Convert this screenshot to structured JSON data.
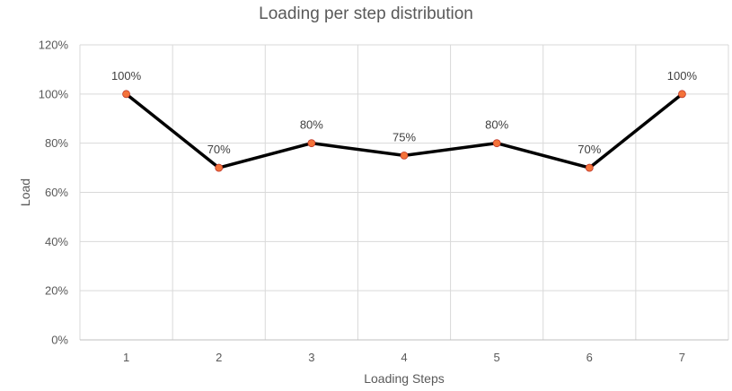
{
  "chart_data": {
    "type": "line",
    "title": "Loading per step distribution",
    "xlabel": "Loading Steps",
    "ylabel": "Load",
    "categories": [
      "1",
      "2",
      "3",
      "4",
      "5",
      "6",
      "7"
    ],
    "series": [
      {
        "values": [
          100,
          70,
          80,
          75,
          80,
          70,
          100
        ],
        "data_labels": [
          "100%",
          "70%",
          "80%",
          "75%",
          "80%",
          "70%",
          "100%"
        ],
        "line_color": "#000000",
        "marker_color": "#f4733a"
      }
    ],
    "ylim": [
      0,
      120
    ],
    "yticks": [
      0,
      20,
      40,
      60,
      80,
      100,
      120
    ],
    "ytick_labels": [
      "0%",
      "20%",
      "40%",
      "60%",
      "80%",
      "100%",
      "120%"
    ],
    "grid": true,
    "legend": "none"
  }
}
